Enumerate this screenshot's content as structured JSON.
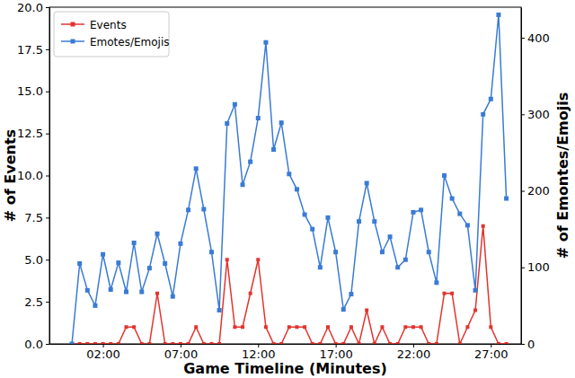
{
  "chart_data": {
    "type": "line",
    "x_label": "Game Timeline (Minutes)",
    "y_label": "# of Events",
    "y2_label": "# of Emontes/Emojis",
    "x": [
      0,
      0.5,
      1,
      1.5,
      2,
      2.5,
      3,
      3.5,
      4,
      4.5,
      5,
      5.5,
      6,
      6.5,
      7,
      7.5,
      8,
      8.5,
      9,
      9.5,
      10,
      10.5,
      11,
      11.5,
      12,
      12.5,
      13,
      13.5,
      14,
      14.5,
      15,
      15.5,
      16,
      16.5,
      17,
      17.5,
      18,
      18.5,
      19,
      19.5,
      20,
      20.5,
      21,
      21.5,
      22,
      22.5,
      23,
      23.5,
      24,
      24.5,
      25,
      25.5,
      26,
      26.5,
      27,
      27.5,
      28
    ],
    "xlim": [
      -1.45,
      28.95
    ],
    "xticks": [
      {
        "value": 2,
        "label": "02:00"
      },
      {
        "value": 7,
        "label": "07:00"
      },
      {
        "value": 12,
        "label": "12:00"
      },
      {
        "value": 17,
        "label": "17:00"
      },
      {
        "value": 22,
        "label": "22:00"
      },
      {
        "value": 27,
        "label": "27:00"
      }
    ],
    "ylim": [
      0,
      20
    ],
    "yticks": [
      {
        "value": 0,
        "label": "0.0"
      },
      {
        "value": 2.5,
        "label": "2.5"
      },
      {
        "value": 5,
        "label": "5.0"
      },
      {
        "value": 7.5,
        "label": "7.5"
      },
      {
        "value": 10,
        "label": "10.0"
      },
      {
        "value": 12.5,
        "label": "12.5"
      },
      {
        "value": 15,
        "label": "15.0"
      },
      {
        "value": 17.5,
        "label": "17.5"
      },
      {
        "value": 20,
        "label": "20.0"
      }
    ],
    "y2lim": [
      0,
      440
    ],
    "y2ticks": [
      0,
      100,
      200,
      300,
      400
    ],
    "grid": false,
    "legend": "upper left",
    "series": [
      {
        "name": "Events",
        "color": "#e3342f",
        "marker": "square",
        "values": [
          0,
          0,
          0,
          0,
          0,
          0,
          0,
          1,
          1,
          0,
          0,
          3,
          0,
          0,
          0,
          0,
          1,
          0,
          0,
          0,
          5,
          1,
          1,
          3,
          5,
          1,
          0,
          0,
          1,
          1,
          1,
          0,
          0,
          1,
          0,
          0,
          1,
          0,
          2,
          0,
          1,
          0,
          0,
          1,
          1,
          1,
          0,
          0,
          3,
          3,
          0,
          1,
          2,
          7,
          1,
          0,
          0
        ]
      },
      {
        "name": "Emotes/Emojis",
        "color": "#3a7bd5",
        "marker": "square",
        "axis": "y2",
        "values": [
          0,
          105,
          70,
          50,
          117,
          71,
          106,
          68,
          132,
          68,
          99,
          144,
          105,
          62,
          131,
          175,
          229,
          176,
          120,
          44,
          288,
          313,
          208,
          238,
          295,
          394,
          254,
          289,
          222,
          202,
          169,
          150,
          100,
          165,
          120,
          45,
          65,
          160,
          210,
          160,
          120,
          140,
          100,
          110,
          172,
          175,
          120,
          80,
          220,
          190,
          170,
          155,
          70,
          300,
          320,
          430,
          190
        ]
      }
    ]
  }
}
